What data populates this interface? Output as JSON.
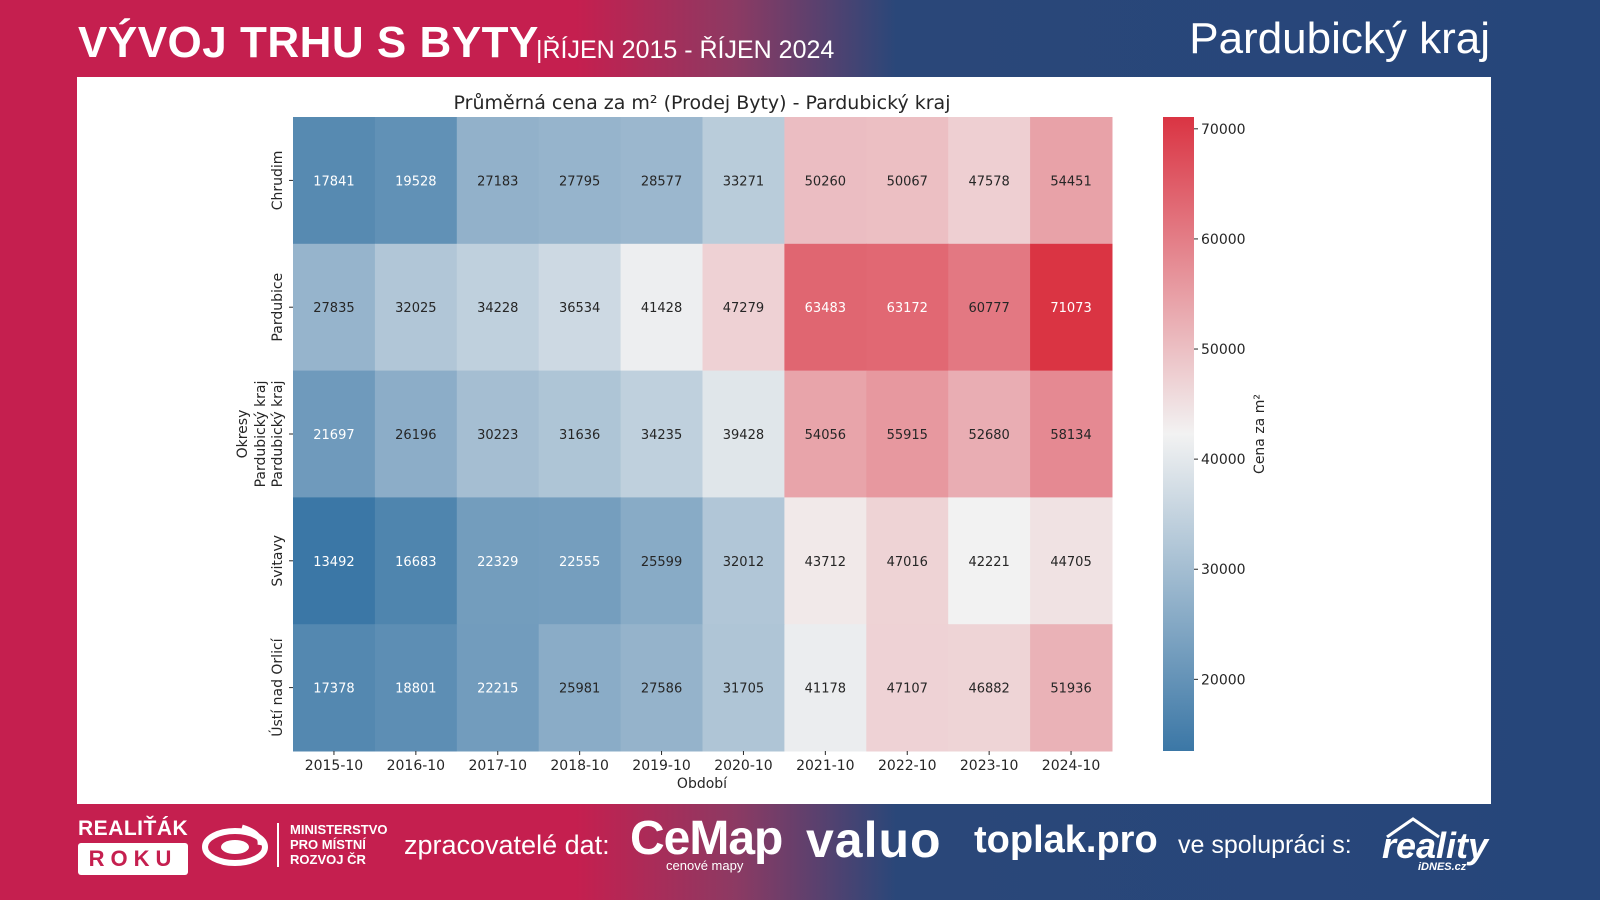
{
  "header": {
    "title": "VÝVOJ TRHU S BYTY",
    "range": "|ŘÍJEN 2015 - ŘÍJEN 2024",
    "region": "Pardubický kraj"
  },
  "footer": {
    "realitak": "REALIŤÁK",
    "roku": "ROKU",
    "mmr_line1": "MINISTERSTVO",
    "mmr_line2": "PRO MÍSTNÍ",
    "mmr_line3": "ROZVOJ ČR",
    "processors_label": "zpracovatelé dat:",
    "cemap": "CeMap",
    "cemap_sub": "cenové mapy",
    "valuo": "valuo",
    "toplak": "toplak.pro",
    "cooperation_label": "ve spolupráci s:",
    "reality": "reality",
    "idnes": "iDNES.cz",
    "icons": [
      "mmr-logo-icon",
      "house-roof-icon"
    ]
  },
  "colors": {
    "brand_red": "#c51f4f",
    "brand_blue": "#26467a",
    "cmap_low": "#3b77a6",
    "cmap_mid": "#f2f2f2",
    "cmap_high": "#da3443"
  },
  "chart_data": {
    "type": "heatmap",
    "title": "Průměrná cena za m² (Prodej Byty) - Pardubický kraj",
    "xlabel": "Období",
    "ylabel": "Okresy\nPardubický kraj",
    "x": [
      "2015-10",
      "2016-10",
      "2017-10",
      "2018-10",
      "2019-10",
      "2020-10",
      "2021-10",
      "2022-10",
      "2023-10",
      "2024-10"
    ],
    "y": [
      "Chrudim",
      "Pardubice",
      "Pardubický kraj",
      "Svitavy",
      "Ústí nad Orlicí"
    ],
    "values": [
      [
        17841,
        19528,
        27183,
        27795,
        28577,
        33271,
        50260,
        50067,
        47578,
        54451
      ],
      [
        27835,
        32025,
        34228,
        36534,
        41428,
        47279,
        63483,
        63172,
        60777,
        71073
      ],
      [
        21697,
        26196,
        30223,
        31636,
        34235,
        39428,
        54056,
        55915,
        52680,
        58134
      ],
      [
        13492,
        16683,
        22329,
        22555,
        25599,
        32012,
        43712,
        47016,
        42221,
        44705
      ],
      [
        17378,
        18801,
        22215,
        25981,
        27586,
        31705,
        41178,
        47107,
        46882,
        51936
      ]
    ],
    "colorbar": {
      "label": "Cena za m²",
      "range": [
        13492,
        71073
      ],
      "center": 42282,
      "ticks": [
        20000,
        30000,
        40000,
        50000,
        60000,
        70000
      ]
    },
    "annotations": "cell values",
    "grid": false,
    "legend": "colorbar-right"
  }
}
